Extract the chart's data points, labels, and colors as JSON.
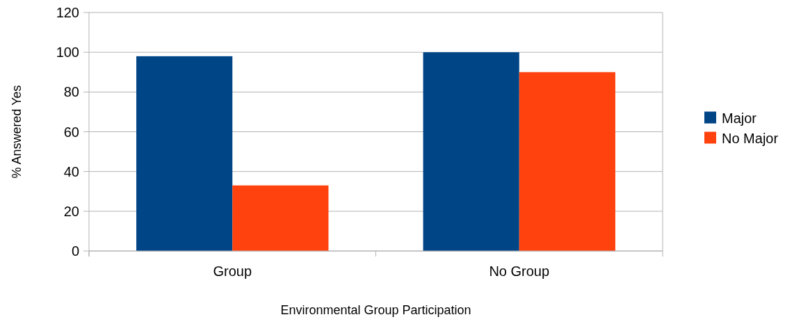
{
  "chart_data": {
    "type": "bar",
    "xlabel": "Environmental Group Participation",
    "ylabel": "% Answered Yes",
    "categories": [
      "Group",
      "No Group"
    ],
    "series": [
      {
        "name": "Major",
        "color": "#004586",
        "values": [
          98,
          100
        ]
      },
      {
        "name": "No Major",
        "color": "#ff420e",
        "values": [
          33,
          90
        ]
      }
    ],
    "ylim": [
      0,
      120
    ],
    "yticks": [
      0,
      20,
      40,
      60,
      80,
      100,
      120
    ],
    "grid": "y",
    "legend": "right"
  }
}
